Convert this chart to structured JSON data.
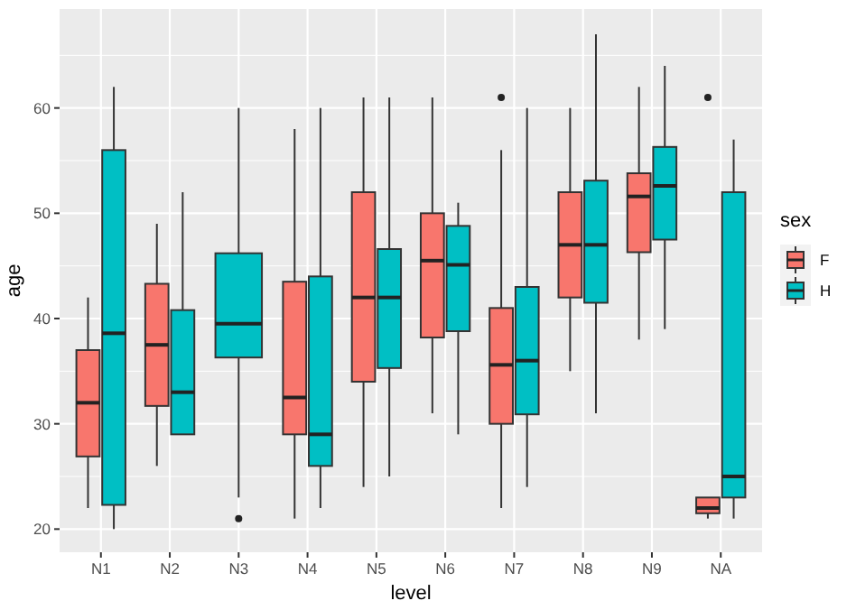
{
  "chart_data": {
    "type": "box",
    "xlabel": "level",
    "ylabel": "age",
    "legend_title": "sex",
    "legend": "right",
    "grid": true,
    "categories": [
      "N1",
      "N2",
      "N3",
      "N4",
      "N5",
      "N6",
      "N7",
      "N8",
      "N9",
      "NA"
    ],
    "ylim": [
      17.8,
      69.4
    ],
    "yticks": [
      20,
      30,
      40,
      50,
      60
    ],
    "series": [
      {
        "name": "F",
        "color": "#f8766d",
        "boxes": [
          {
            "low": 22,
            "q1": 26.9,
            "median": 32,
            "q3": 37,
            "high": 42
          },
          {
            "low": 26,
            "q1": 31.7,
            "median": 37.5,
            "q3": 43.3,
            "high": 49
          },
          null,
          {
            "low": 21,
            "q1": 29,
            "median": 32.5,
            "q3": 43.5,
            "high": 58
          },
          {
            "low": 24,
            "q1": 34,
            "median": 42,
            "q3": 52,
            "high": 61
          },
          {
            "low": 31,
            "q1": 38.2,
            "median": 45.5,
            "q3": 50,
            "high": 61
          },
          {
            "low": 22,
            "q1": 30,
            "median": 35.6,
            "q3": 41,
            "high": 56,
            "outliers": [
              61
            ]
          },
          {
            "low": 35,
            "q1": 42,
            "median": 47,
            "q3": 52,
            "high": 60
          },
          {
            "low": 38,
            "q1": 46.3,
            "median": 51.6,
            "q3": 53.8,
            "high": 62
          },
          {
            "low": 21,
            "q1": 21.5,
            "median": 22,
            "q3": 23,
            "high": 23,
            "outliers": [
              61
            ]
          }
        ]
      },
      {
        "name": "H",
        "color": "#00bfc4",
        "boxes": [
          {
            "low": 20,
            "q1": 22.3,
            "median": 38.6,
            "q3": 56,
            "high": 62
          },
          {
            "low": 29,
            "q1": 29,
            "median": 33,
            "q3": 40.8,
            "high": 52
          },
          {
            "low": 23,
            "q1": 36.3,
            "median": 39.5,
            "q3": 46.2,
            "high": 60,
            "outliers": [
              21
            ]
          },
          {
            "low": 22,
            "q1": 26,
            "median": 29,
            "q3": 44,
            "high": 60
          },
          {
            "low": 25,
            "q1": 35.3,
            "median": 42,
            "q3": 46.6,
            "high": 61
          },
          {
            "low": 29,
            "q1": 38.8,
            "median": 45.1,
            "q3": 48.8,
            "high": 51
          },
          {
            "low": 24,
            "q1": 30.9,
            "median": 36,
            "q3": 43,
            "high": 60
          },
          {
            "low": 31,
            "q1": 41.5,
            "median": 47,
            "q3": 53.1,
            "high": 67
          },
          {
            "low": 39,
            "q1": 47.5,
            "median": 52.6,
            "q3": 56.3,
            "high": 64
          },
          {
            "low": 21,
            "q1": 23,
            "median": 25,
            "q3": 52,
            "high": 57
          }
        ]
      }
    ]
  }
}
